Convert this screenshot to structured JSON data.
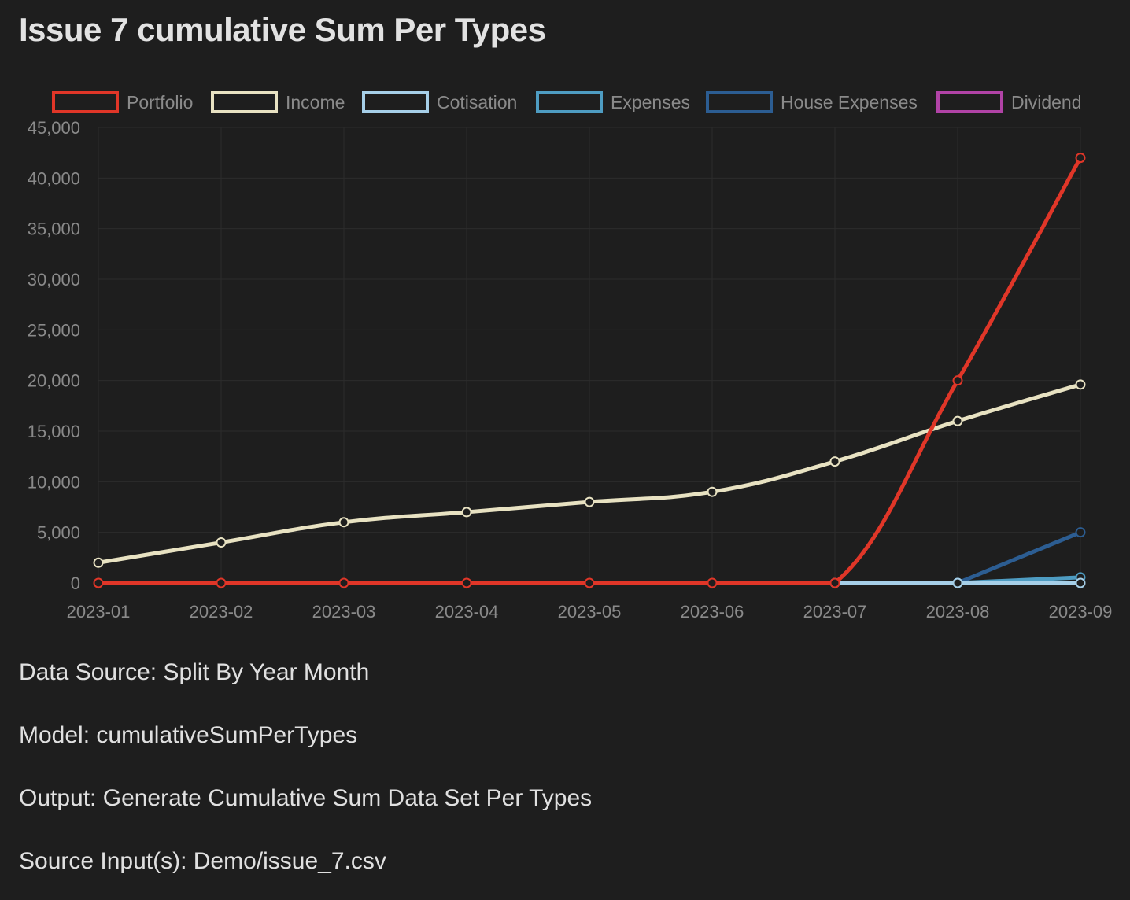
{
  "title": "Issue 7 cumulative Sum Per Types",
  "info": {
    "data_source": "Data Source: Split By Year Month",
    "model": "Model: cumulativeSumPerTypes",
    "output": "Output: Generate Cumulative Sum Data Set Per Types",
    "source_input": "Source Input(s): Demo/issue_7.csv"
  },
  "chart_data": {
    "type": "line",
    "title": "",
    "xlabel": "",
    "ylabel": "",
    "legend_position": "top",
    "grid": true,
    "ylim": [
      0,
      45000
    ],
    "y_ticks": [
      0,
      5000,
      10000,
      15000,
      20000,
      25000,
      30000,
      35000,
      40000,
      45000
    ],
    "y_tick_labels": [
      "0",
      "5,000",
      "10,000",
      "15,000",
      "20,000",
      "25,000",
      "30,000",
      "35,000",
      "40,000",
      "45,000"
    ],
    "categories": [
      "2023-01",
      "2023-02",
      "2023-03",
      "2023-04",
      "2023-05",
      "2023-06",
      "2023-07",
      "2023-08",
      "2023-09"
    ],
    "series": [
      {
        "name": "Portfolio",
        "color": "#e03628",
        "values": [
          0,
          0,
          0,
          0,
          0,
          0,
          0,
          20000,
          42000
        ]
      },
      {
        "name": "Income",
        "color": "#e8e2c2",
        "values": [
          2000,
          4000,
          6000,
          7000,
          8000,
          9000,
          12000,
          16000,
          19600
        ]
      },
      {
        "name": "Cotisation",
        "color": "#a6cfe8",
        "values": [
          null,
          null,
          null,
          null,
          null,
          null,
          0,
          0,
          0
        ]
      },
      {
        "name": "Expenses",
        "color": "#4e9cc2",
        "values": [
          null,
          null,
          null,
          null,
          null,
          null,
          null,
          0,
          550
        ]
      },
      {
        "name": "House Expenses",
        "color": "#2c5d92",
        "values": [
          null,
          null,
          null,
          null,
          null,
          null,
          null,
          0,
          5000
        ]
      },
      {
        "name": "Dividend",
        "color": "#b143a6",
        "values": [
          null,
          null,
          null,
          null,
          null,
          null,
          null,
          null,
          null
        ]
      }
    ]
  }
}
